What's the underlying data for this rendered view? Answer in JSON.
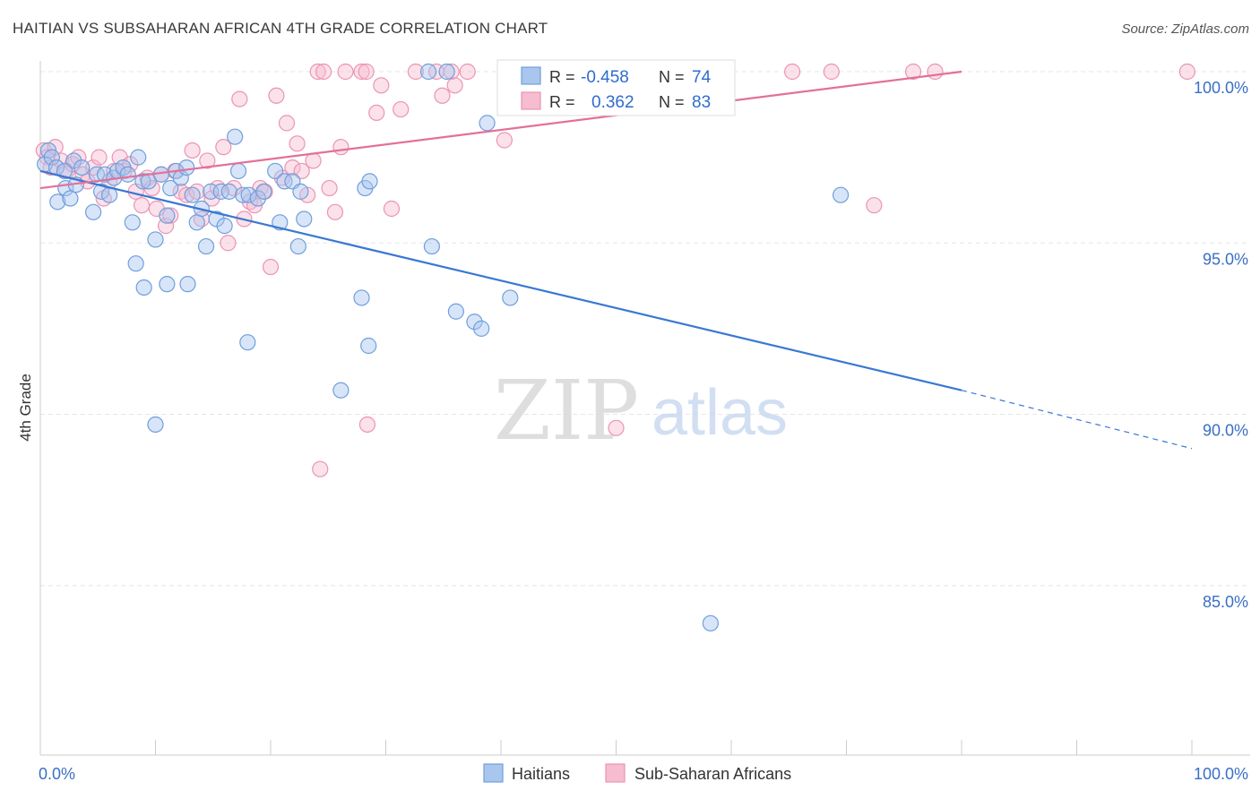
{
  "title": "HAITIAN VS SUBSAHARAN AFRICAN 4TH GRADE CORRELATION CHART",
  "source": "Source: ZipAtlas.com",
  "watermark": {
    "zip": "ZIP",
    "atlas": "atlas"
  },
  "colors": {
    "blue_fill": "#a9c6ef",
    "blue_stroke": "#6f9fdc",
    "blue_line": "#3a78d2",
    "pink_fill": "#f6bcd0",
    "pink_stroke": "#eb94b4",
    "pink_line": "#e2709a",
    "grid": "#e6e6e6",
    "tick_label": "#3a6fc4"
  },
  "legend_top": {
    "rows": [
      {
        "r_label": "R =",
        "r_value": "-0.458",
        "n_label": "N =",
        "n_value": "74",
        "color": "blue"
      },
      {
        "r_label": "R =",
        "r_value": "0.362",
        "n_label": "N =",
        "n_value": "83",
        "color": "pink"
      }
    ]
  },
  "legend_bottom": [
    {
      "label": "Haitians",
      "color": "blue"
    },
    {
      "label": "Sub-Saharan Africans",
      "color": "pink"
    }
  ],
  "chart_data": {
    "type": "scatter",
    "title": "HAITIAN VS SUBSAHARAN AFRICAN 4TH GRADE CORRELATION CHART",
    "xlabel": "",
    "ylabel": "4th Grade",
    "xlim": [
      0,
      100
    ],
    "ylim": [
      80.5,
      100.8
    ],
    "x_tick_labels": [
      "0.0%",
      "100.0%"
    ],
    "y_ticks": [
      85,
      90,
      95,
      100
    ],
    "y_tick_labels": [
      "85.0%",
      "90.0%",
      "95.0%",
      "100.0%"
    ],
    "grid": true,
    "series": [
      {
        "name": "Haitians",
        "color": "blue",
        "trend": {
          "x0": 0,
          "y0": 97.1,
          "x1": 80,
          "y1": 90.7,
          "dash_to_x": 100,
          "dash_to_y": 89.0
        },
        "points": [
          [
            0.4,
            97.3
          ],
          [
            0.7,
            97.7
          ],
          [
            1.0,
            97.5
          ],
          [
            1.4,
            97.2
          ],
          [
            1.5,
            96.2
          ],
          [
            2.2,
            96.6
          ],
          [
            2.6,
            96.3
          ],
          [
            2.9,
            97.4
          ],
          [
            3.1,
            96.7
          ],
          [
            3.6,
            97.2
          ],
          [
            4.6,
            95.9
          ],
          [
            4.9,
            97.0
          ],
          [
            5.3,
            96.5
          ],
          [
            5.6,
            97.0
          ],
          [
            6.0,
            96.4
          ],
          [
            6.4,
            96.9
          ],
          [
            6.7,
            97.1
          ],
          [
            7.2,
            97.2
          ],
          [
            7.6,
            97.0
          ],
          [
            8.0,
            95.6
          ],
          [
            8.5,
            97.5
          ],
          [
            8.9,
            96.8
          ],
          [
            9.4,
            96.8
          ],
          [
            10.0,
            95.1
          ],
          [
            10.5,
            97.0
          ],
          [
            11.0,
            95.8
          ],
          [
            11.3,
            96.6
          ],
          [
            11.8,
            97.1
          ],
          [
            12.2,
            96.9
          ],
          [
            12.7,
            97.2
          ],
          [
            13.2,
            96.4
          ],
          [
            13.6,
            95.6
          ],
          [
            14.0,
            96.0
          ],
          [
            14.4,
            94.9
          ],
          [
            14.8,
            96.5
          ],
          [
            15.3,
            95.7
          ],
          [
            15.7,
            96.5
          ],
          [
            16.0,
            95.5
          ],
          [
            16.4,
            96.5
          ],
          [
            16.9,
            98.1
          ],
          [
            17.2,
            97.1
          ],
          [
            17.6,
            96.4
          ],
          [
            18.1,
            96.4
          ],
          [
            18.9,
            96.3
          ],
          [
            19.4,
            96.5
          ],
          [
            20.4,
            97.1
          ],
          [
            20.8,
            95.6
          ],
          [
            21.2,
            96.8
          ],
          [
            21.9,
            96.8
          ],
          [
            22.4,
            94.9
          ],
          [
            22.6,
            96.5
          ],
          [
            22.9,
            95.7
          ],
          [
            8.3,
            94.4
          ],
          [
            9.0,
            93.7
          ],
          [
            11.0,
            93.8
          ],
          [
            12.8,
            93.8
          ],
          [
            18.0,
            92.1
          ],
          [
            28.2,
            96.6
          ],
          [
            28.5,
            92.0
          ],
          [
            28.6,
            96.8
          ],
          [
            33.7,
            100.0
          ],
          [
            34.0,
            94.9
          ],
          [
            35.3,
            100.0
          ],
          [
            36.1,
            93.0
          ],
          [
            37.7,
            92.7
          ],
          [
            38.3,
            92.5
          ],
          [
            38.8,
            98.5
          ],
          [
            40.8,
            93.4
          ],
          [
            27.9,
            93.4
          ],
          [
            26.1,
            90.7
          ],
          [
            10.0,
            89.7
          ],
          [
            58.2,
            83.9
          ],
          [
            69.5,
            96.4
          ],
          [
            2.1,
            97.1
          ]
        ]
      },
      {
        "name": "Sub-Saharan Africans",
        "color": "pink",
        "trend": {
          "x0": 0,
          "y0": 96.6,
          "x1": 80,
          "y1": 100.0
        },
        "points": [
          [
            0.3,
            97.7
          ],
          [
            0.6,
            97.5
          ],
          [
            0.9,
            97.2
          ],
          [
            1.3,
            97.8
          ],
          [
            1.8,
            97.4
          ],
          [
            2.3,
            97.1
          ],
          [
            2.8,
            97.3
          ],
          [
            3.3,
            97.5
          ],
          [
            3.7,
            97.0
          ],
          [
            4.1,
            96.8
          ],
          [
            4.6,
            97.2
          ],
          [
            5.1,
            97.5
          ],
          [
            5.5,
            96.3
          ],
          [
            6.0,
            96.8
          ],
          [
            6.4,
            97.1
          ],
          [
            6.9,
            97.5
          ],
          [
            7.3,
            97.1
          ],
          [
            7.8,
            97.3
          ],
          [
            8.3,
            96.5
          ],
          [
            8.8,
            96.1
          ],
          [
            9.3,
            96.9
          ],
          [
            9.7,
            96.6
          ],
          [
            10.1,
            96.0
          ],
          [
            10.5,
            97.0
          ],
          [
            10.9,
            95.5
          ],
          [
            11.3,
            95.8
          ],
          [
            11.7,
            97.1
          ],
          [
            12.2,
            96.5
          ],
          [
            12.7,
            96.4
          ],
          [
            13.2,
            97.7
          ],
          [
            13.6,
            96.5
          ],
          [
            14.0,
            95.7
          ],
          [
            14.5,
            97.4
          ],
          [
            14.9,
            96.3
          ],
          [
            15.4,
            96.6
          ],
          [
            15.9,
            97.8
          ],
          [
            16.3,
            95.0
          ],
          [
            16.8,
            96.6
          ],
          [
            17.3,
            99.2
          ],
          [
            17.7,
            95.7
          ],
          [
            18.2,
            96.2
          ],
          [
            18.6,
            96.1
          ],
          [
            19.1,
            96.6
          ],
          [
            19.5,
            96.5
          ],
          [
            20.0,
            94.3
          ],
          [
            20.5,
            99.3
          ],
          [
            21.0,
            96.9
          ],
          [
            21.4,
            98.5
          ],
          [
            21.9,
            97.2
          ],
          [
            22.3,
            97.9
          ],
          [
            22.7,
            97.1
          ],
          [
            23.2,
            96.4
          ],
          [
            23.7,
            97.4
          ],
          [
            24.1,
            100.0
          ],
          [
            24.6,
            100.0
          ],
          [
            25.1,
            96.6
          ],
          [
            25.6,
            95.9
          ],
          [
            26.1,
            97.8
          ],
          [
            26.5,
            100.0
          ],
          [
            27.9,
            100.0
          ],
          [
            28.3,
            100.0
          ],
          [
            29.2,
            98.8
          ],
          [
            29.6,
            99.6
          ],
          [
            30.5,
            96.0
          ],
          [
            31.3,
            98.9
          ],
          [
            32.6,
            100.0
          ],
          [
            34.4,
            100.0
          ],
          [
            34.9,
            99.3
          ],
          [
            35.7,
            100.0
          ],
          [
            36.0,
            99.6
          ],
          [
            37.1,
            100.0
          ],
          [
            40.3,
            98.0
          ],
          [
            41.2,
            100.0
          ],
          [
            46.1,
            100.0
          ],
          [
            48.3,
            100.0
          ],
          [
            50.0,
            89.6
          ],
          [
            55.0,
            100.0
          ],
          [
            59.5,
            100.0
          ],
          [
            65.3,
            100.0
          ],
          [
            68.7,
            100.0
          ],
          [
            72.4,
            96.1
          ],
          [
            75.8,
            100.0
          ],
          [
            77.7,
            100.0
          ]
        ]
      }
    ],
    "extra_points": {
      "pink": [
        [
          28.4,
          89.7
        ],
        [
          24.3,
          88.4
        ],
        [
          99.6,
          100.0
        ]
      ]
    }
  }
}
